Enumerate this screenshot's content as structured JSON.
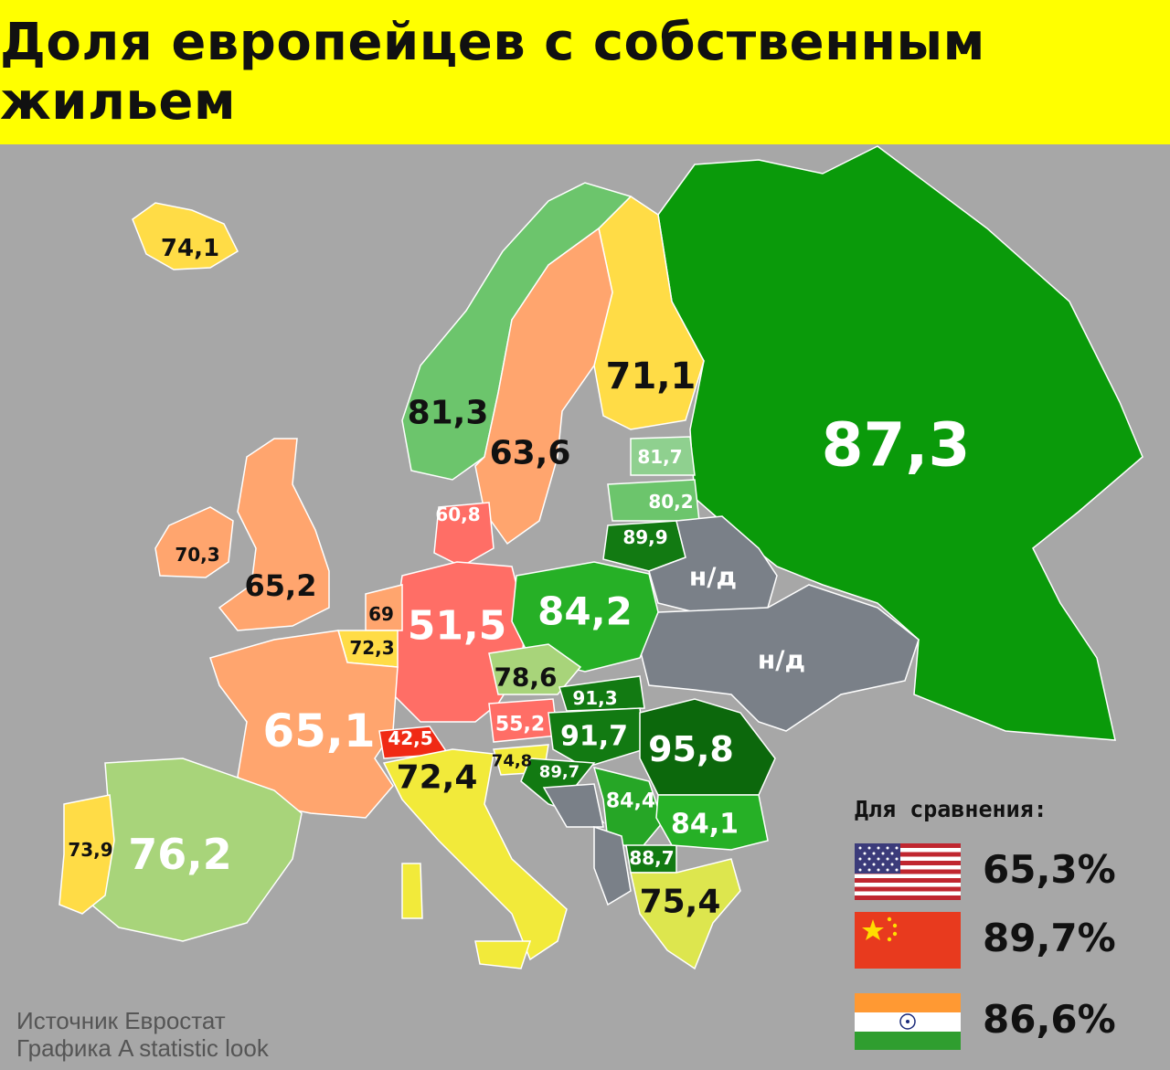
{
  "title": "Доля европейцев с собственным жильем",
  "colors": {
    "header_bg": "#ffff00",
    "background": "#a7a7a7",
    "sea": "#a7a7a7",
    "no_data": "#7a8088",
    "very_low": "#f02a14",
    "low": "#ff6e66",
    "mid_low": "#ffa56e",
    "mid": "#ffdc46",
    "yellow": "#f2ea3a",
    "light_green": "#a8d47a",
    "green_light": "#6cc56c",
    "green": "#26a626",
    "dark_green": "#127a12"
  },
  "regions": [
    {
      "name": "Iceland",
      "value": "74,1",
      "color": "#ffdc46",
      "text": "dark"
    },
    {
      "name": "Norway",
      "value": "81,3",
      "color": "#6cc56c",
      "text": "dark"
    },
    {
      "name": "Sweden",
      "value": "63,6",
      "color": "#ffa56e",
      "text": "dark"
    },
    {
      "name": "Finland",
      "value": "71,1",
      "color": "#ffdc46",
      "text": "dark"
    },
    {
      "name": "Russia",
      "value": "87,3",
      "color": "#0a9a0a",
      "text": "light"
    },
    {
      "name": "Estonia",
      "value": "81,7",
      "color": "#8fd08f",
      "text": "light"
    },
    {
      "name": "Latvia",
      "value": "80,2",
      "color": "#6cc56c",
      "text": "light"
    },
    {
      "name": "Lithuania",
      "value": "89,9",
      "color": "#127a12",
      "text": "light"
    },
    {
      "name": "Belarus",
      "value": "н/д",
      "color": "#7a8088",
      "text": "light"
    },
    {
      "name": "Ukraine",
      "value": "н/д",
      "color": "#7a8088",
      "text": "light"
    },
    {
      "name": "Ireland",
      "value": "70,3",
      "color": "#ffa56e",
      "text": "dark"
    },
    {
      "name": "United Kingdom",
      "value": "65,2",
      "color": "#ffa56e",
      "text": "dark"
    },
    {
      "name": "Denmark",
      "value": "60,8",
      "color": "#ff6e66",
      "text": "light"
    },
    {
      "name": "Netherlands",
      "value": "69",
      "color": "#ffa56e",
      "text": "dark"
    },
    {
      "name": "Belgium",
      "value": "72,3",
      "color": "#ffdc46",
      "text": "dark"
    },
    {
      "name": "Germany",
      "value": "51,5",
      "color": "#ff6e66",
      "text": "light"
    },
    {
      "name": "Poland",
      "value": "84,2",
      "color": "#26b026",
      "text": "light"
    },
    {
      "name": "Czech Republic",
      "value": "78,6",
      "color": "#a8d47a",
      "text": "dark"
    },
    {
      "name": "Slovakia",
      "value": "91,3",
      "color": "#127a12",
      "text": "light"
    },
    {
      "name": "France",
      "value": "65,1",
      "color": "#ffa56e",
      "text": "light"
    },
    {
      "name": "Switzerland",
      "value": "42,5",
      "color": "#f02a14",
      "text": "light"
    },
    {
      "name": "Austria",
      "value": "55,2",
      "color": "#ff6e66",
      "text": "light"
    },
    {
      "name": "Hungary",
      "value": "91,7",
      "color": "#127a12",
      "text": "light"
    },
    {
      "name": "Romania",
      "value": "95,8",
      "color": "#0c680c",
      "text": "light"
    },
    {
      "name": "Italy",
      "value": "72,4",
      "color": "#f2ea3a",
      "text": "dark"
    },
    {
      "name": "Slovenia",
      "value": "74,8",
      "color": "#f2ea3a",
      "text": "dark"
    },
    {
      "name": "Croatia",
      "value": "89,7",
      "color": "#127a12",
      "text": "light"
    },
    {
      "name": "Serbia",
      "value": "84,4",
      "color": "#26a626",
      "text": "light"
    },
    {
      "name": "Bulgaria",
      "value": "84,1",
      "color": "#26b026",
      "text": "light"
    },
    {
      "name": "North Macedonia",
      "value": "88,7",
      "color": "#127a12",
      "text": "light"
    },
    {
      "name": "Greece",
      "value": "75,4",
      "color": "#dde64e",
      "text": "dark"
    },
    {
      "name": "Spain",
      "value": "76,2",
      "color": "#a8d47a",
      "text": "light"
    },
    {
      "name": "Portugal",
      "value": "73,9",
      "color": "#ffdc46",
      "text": "dark"
    },
    {
      "name": "Bosnia",
      "value": "",
      "color": "#7a8088",
      "text": "light"
    },
    {
      "name": "Albania / Montenegro",
      "value": "",
      "color": "#7a8088",
      "text": "light"
    }
  ],
  "comparison": {
    "title": "Для сравнения:",
    "items": [
      {
        "flag": "usa-flag-icon",
        "value": "65,3%"
      },
      {
        "flag": "china-flag-icon",
        "value": "89,7%"
      },
      {
        "flag": "india-flag-icon",
        "value": "86,6%"
      }
    ]
  },
  "source": {
    "line1": "Источник Евростат",
    "line2": "Графика A statistic look"
  }
}
